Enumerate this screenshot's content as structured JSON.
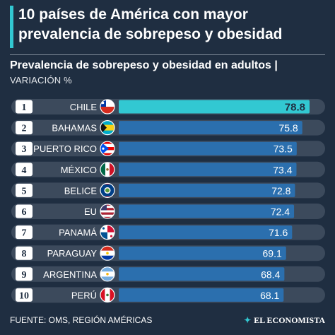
{
  "header": {
    "title_line1": "10 países de América con mayor",
    "title_line2": "prevalencia de sobrepeso y obesidad",
    "subtitle": "Prevalencia de sobrepeso y obesidad en adultos |",
    "caption": "VARIACIÓN %"
  },
  "footer": {
    "source": "FUENTE: OMS, REGIÓN AMÉRICAS",
    "brand": "EL ECONOMISTA",
    "brand_mark": "✦"
  },
  "colors": {
    "background": "#1f2e41",
    "track": "#3c4a5c",
    "bar": "#2b6fae",
    "bar_highlight": "#32c8d2",
    "accent": "#32c8d2"
  },
  "chart_data": {
    "type": "bar",
    "orientation": "horizontal",
    "categories": [
      "CHILE",
      "BAHAMAS",
      "PUERTO RICO",
      "MÉXICO",
      "BELICE",
      "EU",
      "PANAMÁ",
      "PARAGUAY",
      "ARGENTINA",
      "PERÚ"
    ],
    "ranks": [
      "1",
      "2",
      "3",
      "4",
      "5",
      "6",
      "7",
      "8",
      "9",
      "10"
    ],
    "values": [
      78.8,
      75.8,
      73.5,
      73.4,
      72.8,
      72.4,
      71.6,
      69.1,
      68.4,
      68.1
    ],
    "value_labels": [
      "78.8",
      "75.8",
      "73.5",
      "73.4",
      "72.8",
      "72.4",
      "71.6",
      "69.1",
      "68.4",
      "68.1"
    ],
    "flag_icons": [
      "flag-chile-icon",
      "flag-bahamas-icon",
      "flag-puerto-rico-icon",
      "flag-mexico-icon",
      "flag-belize-icon",
      "flag-usa-icon",
      "flag-panama-icon",
      "flag-paraguay-icon",
      "flag-argentina-icon",
      "flag-peru-icon"
    ],
    "highlight_index": 0,
    "xlim": [
      0,
      78.8
    ],
    "grid": false
  }
}
